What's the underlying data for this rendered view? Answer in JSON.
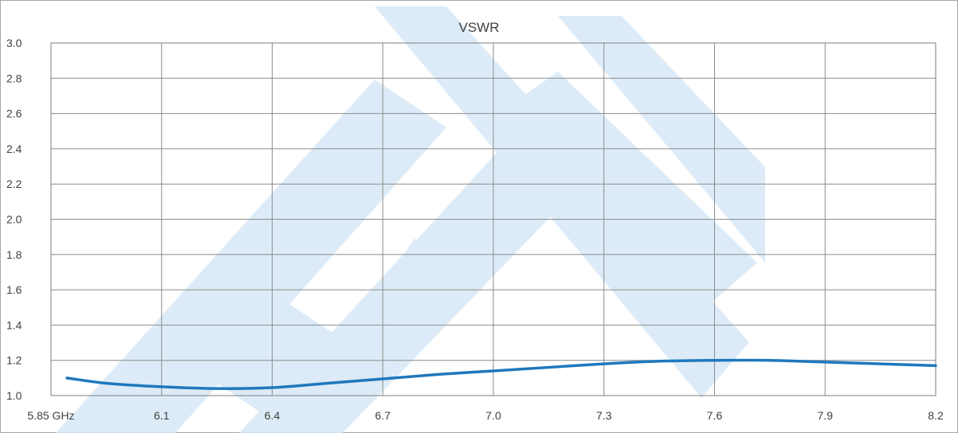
{
  "chart_data": {
    "type": "line",
    "title": "VSWR",
    "xlabel": "",
    "ylabel": "",
    "x_tick_labels": [
      "5.85 GHz",
      "6.1",
      "6.4",
      "6.7",
      "7.0",
      "7.3",
      "7.6",
      "7.9",
      "8.2"
    ],
    "y_tick_labels": [
      "3.0",
      "2.8",
      "2.6",
      "2.4",
      "2.2",
      "2.0",
      "1.8",
      "1.6",
      "1.4",
      "1.2",
      "1.0"
    ],
    "ylim": [
      1.0,
      3.0
    ],
    "grid": true,
    "watermark": "faint light-blue logo",
    "colors": {
      "line": "#1f78bd",
      "grid": "#8c8c8c",
      "frame": "#7f7f7f",
      "watermark": "#cfe3f4"
    },
    "series": [
      {
        "category_index": [
          0,
          0.5,
          1,
          1.5,
          2,
          2.5,
          3,
          3.5,
          4,
          4.5,
          5,
          5.5,
          6,
          6.5,
          7,
          7.5,
          8
        ],
        "values": [
          1.1,
          1.07,
          1.05,
          1.04,
          1.045,
          1.07,
          1.095,
          1.12,
          1.14,
          1.16,
          1.18,
          1.195,
          1.2,
          1.2,
          1.19,
          1.18,
          1.17
        ]
      }
    ]
  }
}
